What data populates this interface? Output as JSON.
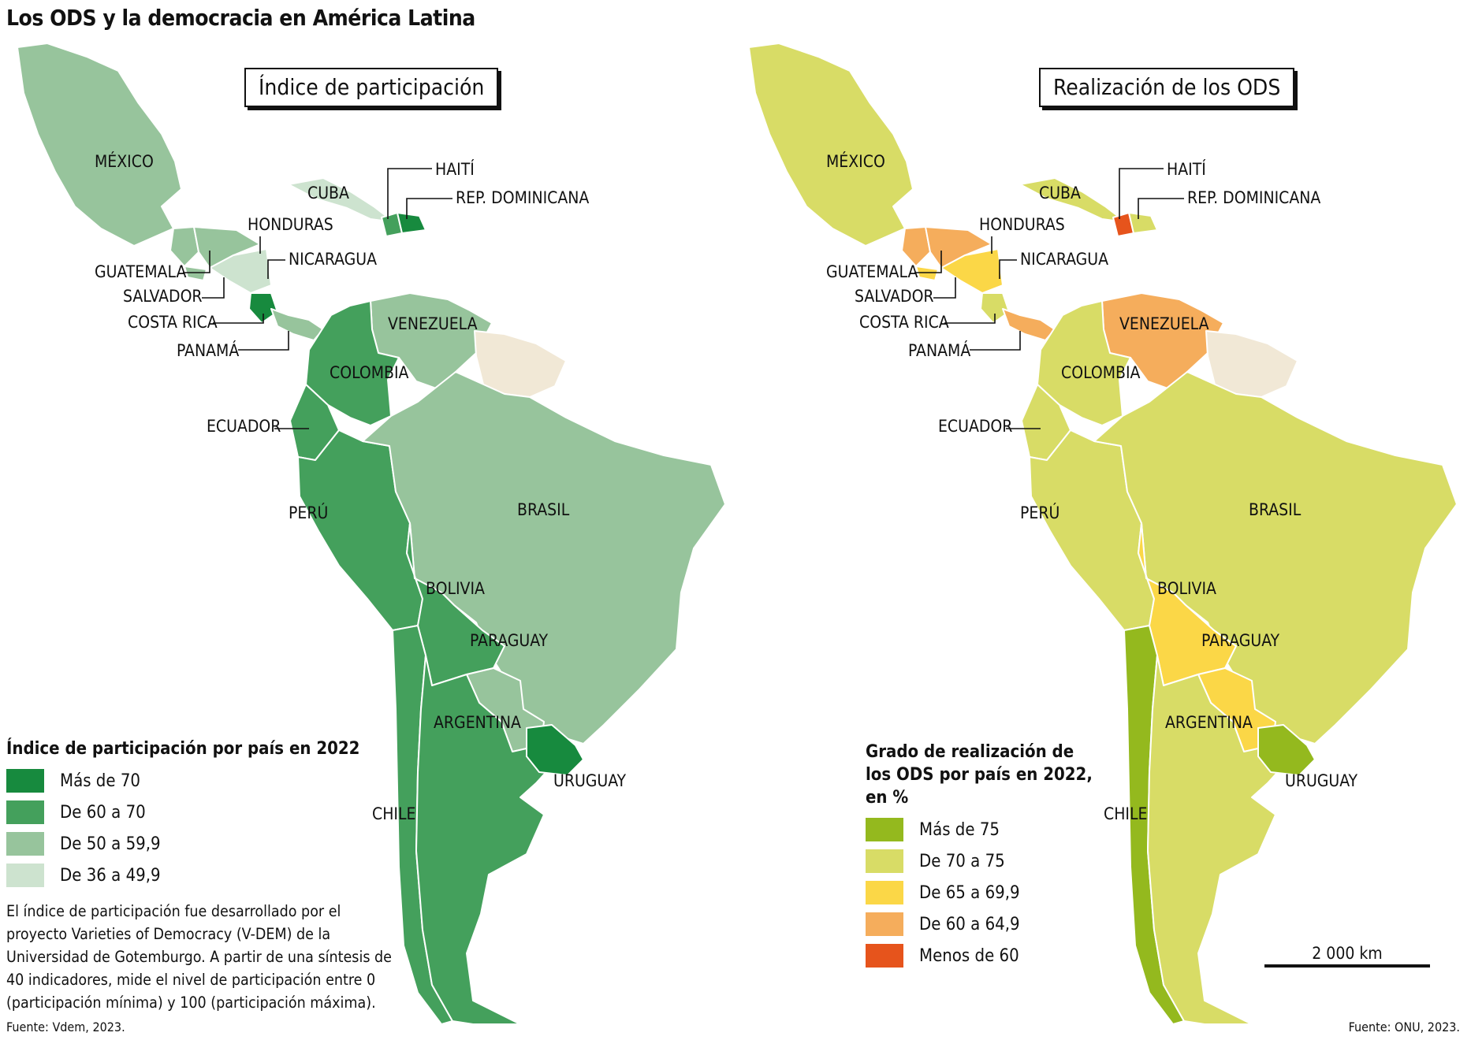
{
  "title": "Los ODS y la democracia en América Latina",
  "left_map": {
    "box_title": "Índice de participación",
    "legend_title": "Índice de participación por país en 2022",
    "legend": [
      {
        "label": "Más de 70",
        "color": "#178a3e"
      },
      {
        "label": "De 60 a 70",
        "color": "#44a05c"
      },
      {
        "label": "De 50 a 59,9",
        "color": "#97c49c"
      },
      {
        "label": "De 36 a 49,9",
        "color": "#cde3cf"
      }
    ],
    "note": "El índice de participación fue desarrollado por el proyecto Varieties of Democracy (V-DEM) de la Universidad de Gotemburgo. A partir de una síntesis de 40 indicadores, mide el nivel de participación entre 0 (participación mínima) y 100 (participación máxima).",
    "source": "Fuente: Vdem, 2023.",
    "no_data_color": "#f1e8d6"
  },
  "right_map": {
    "box_title": "Realización de los ODS",
    "legend_title": [
      "Grado de realización de",
      "los ODS por país en 2022,",
      "en %"
    ],
    "legend": [
      {
        "label": "Más de 75",
        "color": "#94b91e"
      },
      {
        "label": "De 70 a 75",
        "color": "#d8dc66"
      },
      {
        "label": "De 65 a 69,9",
        "color": "#fbd747"
      },
      {
        "label": "De 60 a 64,9",
        "color": "#f5ad5c"
      },
      {
        "label": "Menos de 60",
        "color": "#e6541c"
      }
    ],
    "scale_label": "2  000 km",
    "source": "Fuente: ONU, 2023.",
    "no_data_color": "#f1e8d6"
  },
  "countries": {
    "mexico": {
      "name": "MÉXICO",
      "participation": "De 50 a 59,9",
      "ods": "De 70 a 75"
    },
    "guatemala": {
      "name": "GUATEMALA",
      "participation": "De 50 a 59,9",
      "ods": "De 60 a 64,9"
    },
    "honduras": {
      "name": "HONDURAS",
      "participation": "De 50 a 59,9",
      "ods": "De 60 a 64,9"
    },
    "salvador": {
      "name": "SALVADOR",
      "participation": "De 50 a 59,9",
      "ods": "De 65 a 69,9"
    },
    "nicaragua": {
      "name": "NICARAGUA",
      "participation": "De 36 a 49,9",
      "ods": "De 65 a 69,9"
    },
    "costa_rica": {
      "name": "COSTA RICA",
      "participation": "Más de 70",
      "ods": "De 70 a 75"
    },
    "panama": {
      "name": "PANAMÁ",
      "participation": "De 50 a 59,9",
      "ods": "De 60 a 64,9"
    },
    "cuba": {
      "name": "CUBA",
      "participation": "De 36 a 49,9",
      "ods": "De 70 a 75"
    },
    "haiti": {
      "name": "HAITÍ",
      "participation": "De 60 a 70",
      "ods": "Menos de 60"
    },
    "rep_dominicana": {
      "name": "REP. DOMINICANA",
      "participation": "Más de 70",
      "ods": "De 70 a 75"
    },
    "venezuela": {
      "name": "VENEZUELA",
      "participation": "De 50 a 59,9",
      "ods": "De 60 a 64,9"
    },
    "colombia": {
      "name": "COLOMBIA",
      "participation": "De 60 a 70",
      "ods": "De 70 a 75"
    },
    "ecuador": {
      "name": "ECUADOR",
      "participation": "De 60 a 70",
      "ods": "De 70 a 75"
    },
    "peru": {
      "name": "PERÚ",
      "participation": "De 60 a 70",
      "ods": "De 70 a 75"
    },
    "brasil": {
      "name": "BRASIL",
      "participation": "De 50 a 59,9",
      "ods": "De 70 a 75"
    },
    "bolivia": {
      "name": "BOLIVIA",
      "participation": "De 60 a 70",
      "ods": "De 65 a 69,9"
    },
    "paraguay": {
      "name": "PARAGUAY",
      "participation": "De 50 a 59,9",
      "ods": "De 65 a 69,9"
    },
    "chile": {
      "name": "CHILE",
      "participation": "De 60 a 70",
      "ods": "Más de 75"
    },
    "argentina": {
      "name": "ARGENTINA",
      "participation": "De 60 a 70",
      "ods": "De 70 a 75"
    },
    "uruguay": {
      "name": "URUGUAY",
      "participation": "Más de 70",
      "ods": "Más de 75"
    }
  }
}
